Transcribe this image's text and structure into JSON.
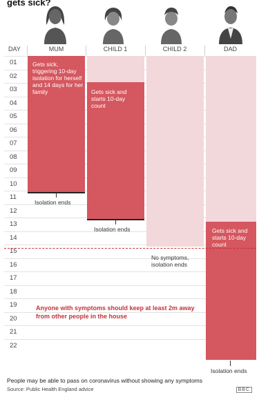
{
  "title": "gets sick?",
  "header": {
    "day": "DAY",
    "mum": "MUM",
    "child1": "CHILD 1",
    "child2": "CHILD 2",
    "dad": "DAD"
  },
  "days": [
    "01",
    "02",
    "03",
    "04",
    "05",
    "06",
    "07",
    "08",
    "09",
    "10",
    "11",
    "12",
    "13",
    "14",
    "15",
    "16",
    "17",
    "18",
    "19",
    "20",
    "21",
    "22"
  ],
  "mum": {
    "note": "Gets sick, triggering 10-day isolation for herself and 14 days for her family",
    "end_label": "Isolation ends"
  },
  "child1": {
    "note": "Gets sick and starts 10-day count",
    "end_label": "Isolation ends"
  },
  "child2": {
    "end_label": "No symptoms, isolation ends"
  },
  "dad": {
    "note": "Gets sick and starts 10-day count",
    "end_label": "Isolation ends"
  },
  "advice": "Anyone with symptoms should keep at least 2m away from other people in the house",
  "footnote": "People may be able to pass on coronavirus without showing any symptoms",
  "source": "Source: Public Health England advice",
  "logo": "BBC",
  "colors": {
    "light": "#f2d8db",
    "dark": "#d5575f",
    "accent": "#c0343d"
  }
}
